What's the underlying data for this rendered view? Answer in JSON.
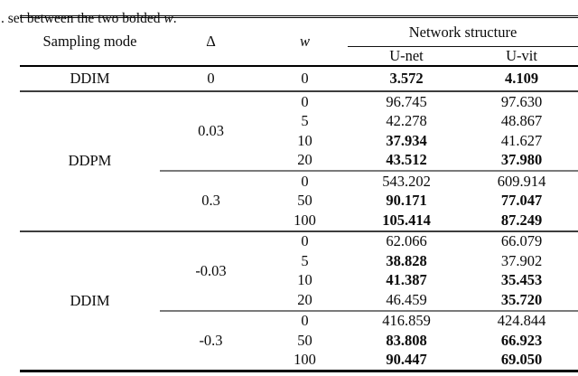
{
  "caption": {
    "before_w": ". set between the two bolded ",
    "w": "w",
    "after_w": "."
  },
  "table": {
    "header": {
      "sampling_mode": "Sampling mode",
      "delta": "Δ",
      "w": "w",
      "group": "Network structure",
      "unet": "U-net",
      "uvit": "U-vit"
    },
    "sections": [
      {
        "mode": "DDIM",
        "groups": [
          {
            "delta": "0",
            "rows": [
              {
                "w": "0",
                "unet": "3.572",
                "unet_bold": true,
                "uvit": "4.109",
                "uvit_bold": true
              }
            ]
          }
        ]
      },
      {
        "mode": "DDPM",
        "groups": [
          {
            "delta": "0.03",
            "rows": [
              {
                "w": "0",
                "unet": "96.745",
                "unet_bold": false,
                "uvit": "97.630",
                "uvit_bold": false
              },
              {
                "w": "5",
                "unet": "42.278",
                "unet_bold": false,
                "uvit": "48.867",
                "uvit_bold": false
              },
              {
                "w": "10",
                "unet": "37.934",
                "unet_bold": true,
                "uvit": "41.627",
                "uvit_bold": false
              },
              {
                "w": "20",
                "unet": "43.512",
                "unet_bold": true,
                "uvit": "37.980",
                "uvit_bold": true
              }
            ]
          },
          {
            "delta": "0.3",
            "rows": [
              {
                "w": "0",
                "unet": "543.202",
                "unet_bold": false,
                "uvit": "609.914",
                "uvit_bold": false
              },
              {
                "w": "50",
                "unet": "90.171",
                "unet_bold": true,
                "uvit": "77.047",
                "uvit_bold": true
              },
              {
                "w": "100",
                "unet": "105.414",
                "unet_bold": true,
                "uvit": "87.249",
                "uvit_bold": true
              }
            ]
          }
        ]
      },
      {
        "mode": "DDIM",
        "groups": [
          {
            "delta": "-0.03",
            "rows": [
              {
                "w": "0",
                "unet": "62.066",
                "unet_bold": false,
                "uvit": "66.079",
                "uvit_bold": false
              },
              {
                "w": "5",
                "unet": "38.828",
                "unet_bold": true,
                "uvit": "37.902",
                "uvit_bold": false
              },
              {
                "w": "10",
                "unet": "41.387",
                "unet_bold": true,
                "uvit": "35.453",
                "uvit_bold": true
              },
              {
                "w": "20",
                "unet": "46.459",
                "unet_bold": false,
                "uvit": "35.720",
                "uvit_bold": true
              }
            ]
          },
          {
            "delta": "-0.3",
            "rows": [
              {
                "w": "0",
                "unet": "416.859",
                "unet_bold": false,
                "uvit": "424.844",
                "uvit_bold": false
              },
              {
                "w": "50",
                "unet": "83.808",
                "unet_bold": true,
                "uvit": "66.923",
                "uvit_bold": true
              },
              {
                "w": "100",
                "unet": "90.447",
                "unet_bold": true,
                "uvit": "69.050",
                "uvit_bold": true
              }
            ]
          }
        ]
      }
    ]
  },
  "colors": {
    "background": "#ffffff",
    "text": "#0b0b0b",
    "rule_black": "#000000",
    "rule_section": "#3d3d3d",
    "rule_subgroup": "#7a7a7a"
  }
}
